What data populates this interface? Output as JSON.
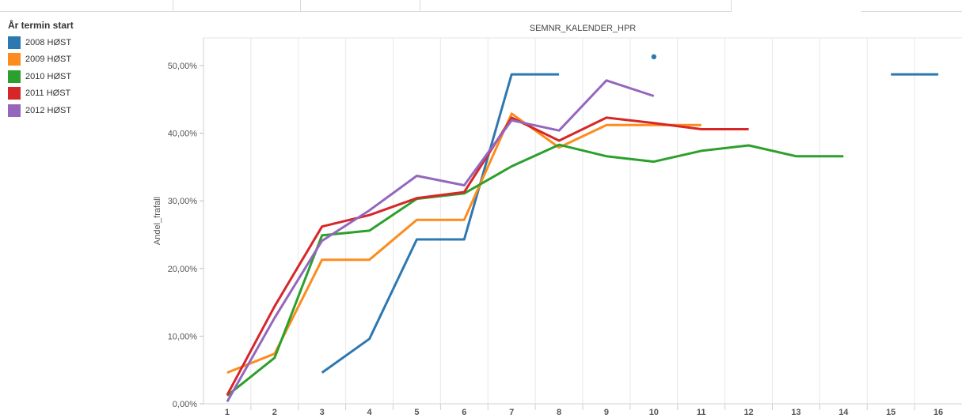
{
  "legend": {
    "title": "År termin start",
    "items": [
      {
        "label": "2008 HØST",
        "color": "#2e78b0"
      },
      {
        "label": "2009 HØST",
        "color": "#fd8c1e"
      },
      {
        "label": "2010 HØST",
        "color": "#2ca02c"
      },
      {
        "label": "2011 HØST",
        "color": "#d62728"
      },
      {
        "label": "2012 HØST",
        "color": "#9467bd"
      }
    ]
  },
  "chart_data": {
    "type": "line",
    "title": "SEMNR_KALENDER_HPR",
    "xlabel": "",
    "ylabel": "Andel_frafall",
    "categories": [
      "1",
      "2",
      "3",
      "4",
      "5",
      "6",
      "7",
      "8",
      "9",
      "10",
      "11",
      "12",
      "13",
      "14",
      "15",
      "16"
    ],
    "y_ticks": [
      "0,00%",
      "10,00%",
      "20,00%",
      "30,00%",
      "40,00%",
      "50,00%"
    ],
    "ylim": [
      0,
      56
    ],
    "grid": false,
    "legend_position": "left",
    "series": [
      {
        "name": "2008 HØST",
        "color": "#2e78b0",
        "values": [
          null,
          null,
          4.6,
          9.6,
          24.3,
          24.3,
          48.7,
          48.7,
          null,
          51.3,
          null,
          null,
          null,
          null,
          48.7,
          48.7
        ]
      },
      {
        "name": "2009 HØST",
        "color": "#fd8c1e",
        "values": [
          4.6,
          7.4,
          21.3,
          21.3,
          27.2,
          27.2,
          42.9,
          37.9,
          41.2,
          41.2,
          41.2,
          null,
          null,
          null,
          null,
          null
        ]
      },
      {
        "name": "2010 HØST",
        "color": "#2ca02c",
        "values": [
          1.2,
          6.8,
          24.9,
          25.6,
          30.3,
          31.1,
          35.1,
          38.3,
          36.6,
          35.8,
          37.4,
          38.2,
          36.6,
          36.6,
          null,
          null
        ]
      },
      {
        "name": "2011 HØST",
        "color": "#d62728",
        "values": [
          1.3,
          14.4,
          26.2,
          27.9,
          30.4,
          31.3,
          42.3,
          38.9,
          42.3,
          41.5,
          40.6,
          40.6,
          null,
          null,
          null,
          null
        ]
      },
      {
        "name": "2012 HØST",
        "color": "#9467bd",
        "values": [
          0.3,
          12.7,
          24.1,
          28.6,
          33.7,
          32.3,
          41.9,
          40.4,
          47.8,
          45.5,
          null,
          null,
          null,
          null,
          null,
          null
        ]
      }
    ]
  }
}
